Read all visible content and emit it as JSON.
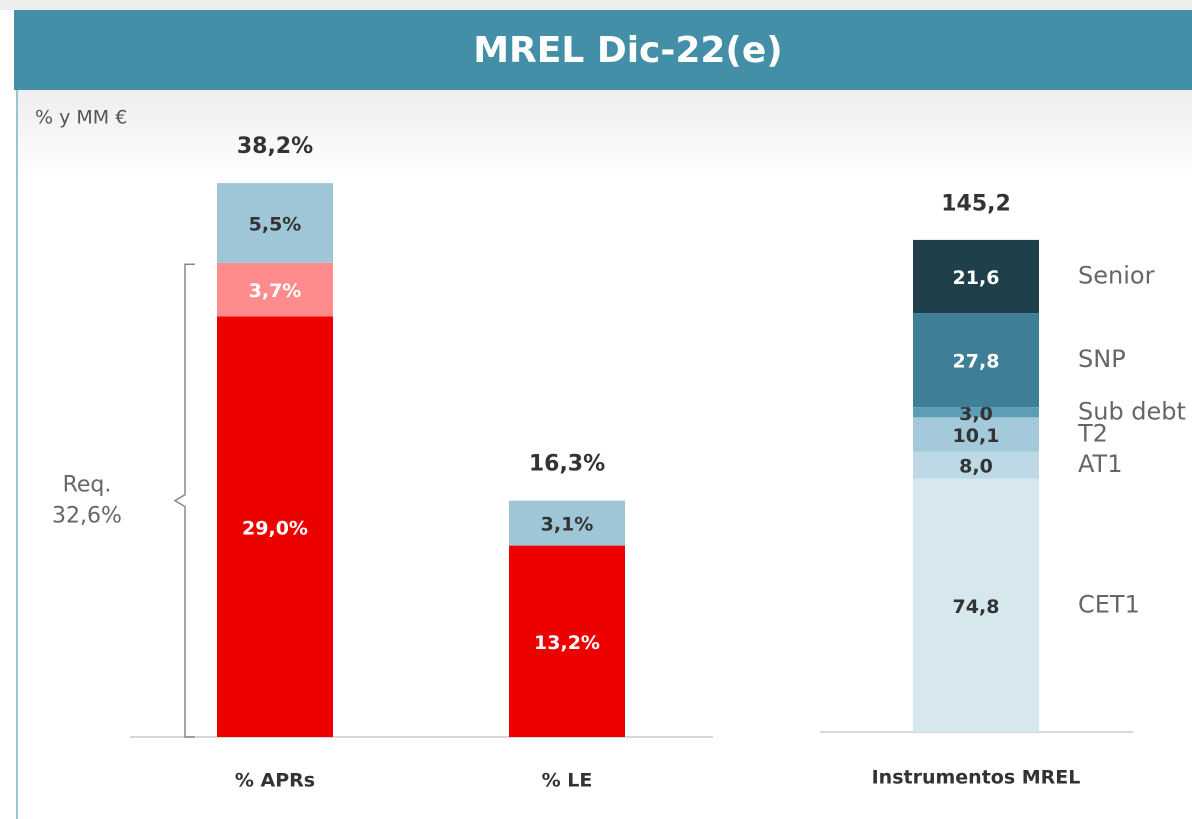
{
  "header": {
    "title": "MREL Dic-22(e)"
  },
  "unit_label": "% y MM €",
  "chart_data": [
    {
      "type": "bar",
      "stacked": true,
      "categories": [
        "% APRs",
        "% LE"
      ],
      "ylim": [
        0,
        40
      ],
      "series": [
        {
          "color": "#ec0000",
          "label_color": "#ffffff",
          "values": [
            29.0,
            13.2
          ],
          "value_labels": [
            "29,0%",
            "13,2%"
          ]
        },
        {
          "color": "#ff8c8c",
          "label_color": "#ffffff",
          "values": [
            3.7,
            null
          ],
          "value_labels": [
            "3,7%",
            null
          ]
        },
        {
          "color": "#9fc6d6",
          "label_color": "#333333",
          "values": [
            5.5,
            3.1
          ],
          "value_labels": [
            "5,5%",
            "3,1%"
          ]
        }
      ],
      "totals": [
        38.2,
        16.3
      ],
      "total_labels": [
        "38,2%",
        "16,3%"
      ],
      "annotation": {
        "lines": [
          "Req.",
          "32,6%"
        ],
        "value": 32.6
      }
    },
    {
      "type": "bar",
      "stacked": true,
      "categories": [
        "Instrumentos MREL"
      ],
      "ylim": [
        0,
        150
      ],
      "series": [
        {
          "name": "CET1",
          "color": "#d6e7ee",
          "label_color": "#333333",
          "values": [
            74.8
          ],
          "value_labels": [
            "74,8"
          ]
        },
        {
          "name": "AT1",
          "color": "#bcd9e5",
          "label_color": "#333333",
          "values": [
            8.0
          ],
          "value_labels": [
            "8,0"
          ]
        },
        {
          "name": "T2",
          "color": "#a3c9da",
          "label_color": "#333333",
          "values": [
            10.1
          ],
          "value_labels": [
            "10,1"
          ]
        },
        {
          "name": "Sub debt",
          "color": "#5d9eb7",
          "label_color": "#333333",
          "values": [
            3.0
          ],
          "value_labels": [
            "3,0"
          ]
        },
        {
          "name": "SNP",
          "color": "#3e7f97",
          "label_color": "#ffffff",
          "values": [
            27.8
          ],
          "value_labels": [
            "27,8"
          ]
        },
        {
          "name": "Senior",
          "color": "#1f3f4b",
          "label_color": "#ffffff",
          "values": [
            21.6
          ],
          "value_labels": [
            "21,6"
          ]
        }
      ],
      "totals": [
        145.2
      ],
      "total_labels": [
        "145,2"
      ]
    }
  ]
}
